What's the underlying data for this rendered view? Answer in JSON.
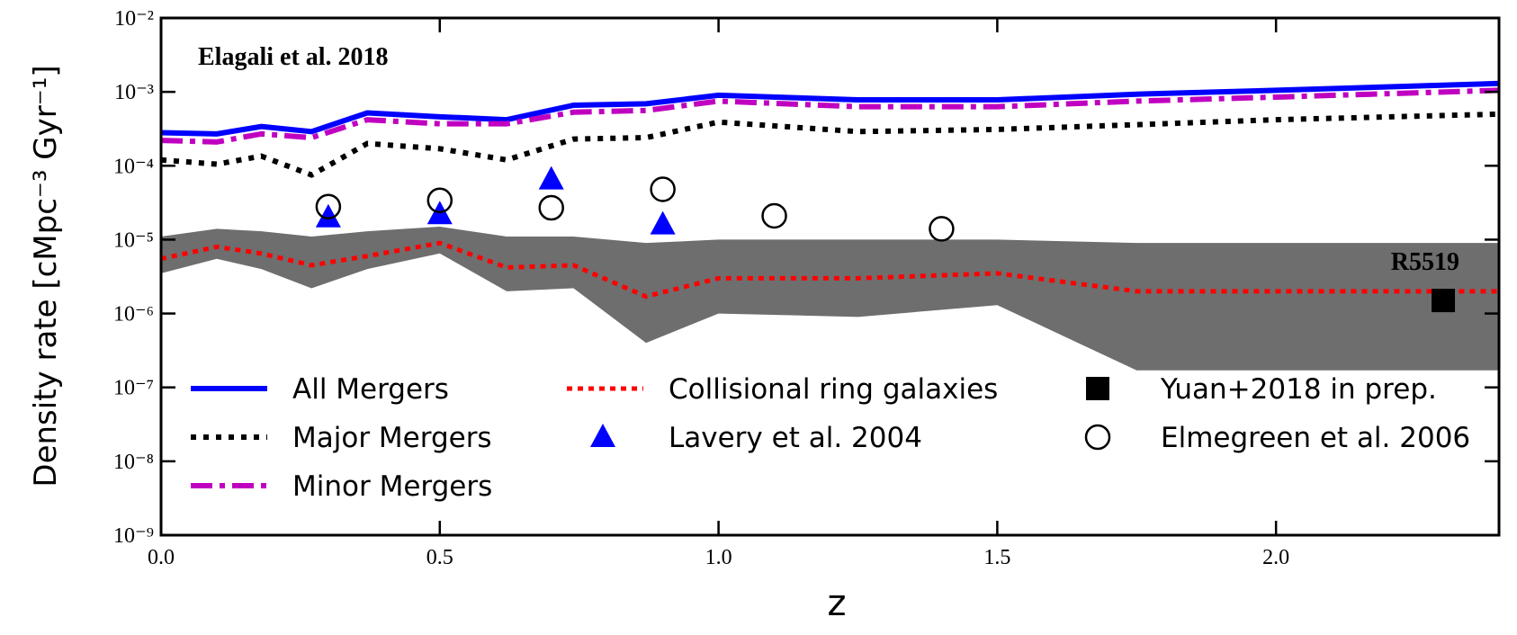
{
  "chart_data": {
    "type": "line",
    "annotation": "Elagali et al. 2018",
    "xlabel": "z",
    "ylabel": "Density rate [cMpc⁻³ Gyr⁻¹]",
    "log_y": true,
    "xlim": [
      0,
      2.4
    ],
    "ylim": [
      1e-09,
      0.01
    ],
    "xticks": [
      {
        "value": 0,
        "label": "0.0"
      },
      0.5,
      {
        "value": 1,
        "label": "1.0"
      },
      1.5,
      {
        "value": 2,
        "label": "2.0"
      }
    ],
    "yticks": [
      {
        "value": 1e-09,
        "label": "10⁻⁹"
      },
      {
        "value": 1e-08,
        "label": "10⁻⁸"
      },
      {
        "value": 1e-07,
        "label": "10⁻⁷"
      },
      {
        "value": 1e-06,
        "label": "10⁻⁶"
      },
      {
        "value": 1e-05,
        "label": "10⁻⁵"
      },
      {
        "value": 0.0001,
        "label": "10⁻⁴"
      },
      {
        "value": 0.001,
        "label": "10⁻³"
      },
      {
        "value": 0.01,
        "label": "10⁻²"
      }
    ],
    "band": {
      "color": "#6e6e6e",
      "x": [
        0,
        0.1,
        0.18,
        0.27,
        0.37,
        0.5,
        0.62,
        0.74,
        0.87,
        1.0,
        1.25,
        1.5,
        1.75,
        2.0,
        2.4
      ],
      "upper": [
        1.1e-05,
        1.4e-05,
        1.3e-05,
        1.1e-05,
        1.3e-05,
        1.5e-05,
        1.1e-05,
        1.1e-05,
        9e-06,
        1e-05,
        1e-05,
        1e-05,
        9e-06,
        9e-06,
        9e-06
      ],
      "lower": [
        3.5e-06,
        5.5e-06,
        4e-06,
        2.2e-06,
        4e-06,
        6.5e-06,
        2e-06,
        2.2e-06,
        4e-07,
        1e-06,
        9e-07,
        1.3e-06,
        1.7e-07,
        1.7e-07,
        1.7e-07
      ]
    },
    "series": [
      {
        "name": "All Mergers",
        "color": "#0000ff",
        "style": "solid",
        "x": [
          0,
          0.1,
          0.18,
          0.27,
          0.37,
          0.5,
          0.62,
          0.74,
          0.87,
          1.0,
          1.25,
          1.5,
          1.75,
          2.0,
          2.4
        ],
        "values": [
          0.00028,
          0.00027,
          0.00034,
          0.00029,
          0.00052,
          0.00046,
          0.00042,
          0.00066,
          0.00069,
          0.0009,
          0.00078,
          0.00078,
          0.00093,
          0.00105,
          0.0013
        ]
      },
      {
        "name": "Major Mergers",
        "color": "#000000",
        "style": "dotted",
        "x": [
          0,
          0.1,
          0.18,
          0.27,
          0.37,
          0.5,
          0.62,
          0.74,
          0.87,
          1.0,
          1.25,
          1.5,
          1.75,
          2.0,
          2.4
        ],
        "values": [
          0.00012,
          0.000105,
          0.000135,
          7.5e-05,
          0.0002,
          0.00017,
          0.00012,
          0.00023,
          0.00024,
          0.00039,
          0.00029,
          0.00031,
          0.00036,
          0.00042,
          0.0005
        ]
      },
      {
        "name": "Minor Mergers",
        "color": "#c000c0",
        "style": "dashdot",
        "x": [
          0,
          0.1,
          0.18,
          0.27,
          0.37,
          0.5,
          0.62,
          0.74,
          0.87,
          1.0,
          1.25,
          1.5,
          1.75,
          2.0,
          2.4
        ],
        "values": [
          0.00022,
          0.00021,
          0.00027,
          0.00024,
          0.00042,
          0.00037,
          0.00037,
          0.00053,
          0.00056,
          0.00075,
          0.00063,
          0.00063,
          0.00075,
          0.00085,
          0.00105
        ]
      },
      {
        "name": "Collisional ring galaxies",
        "color": "#ff0000",
        "style": "reddot",
        "x": [
          0,
          0.1,
          0.18,
          0.27,
          0.37,
          0.5,
          0.62,
          0.74,
          0.87,
          1.0,
          1.25,
          1.5,
          1.75,
          2.0,
          2.4
        ],
        "values": [
          5.5e-06,
          8e-06,
          6.5e-06,
          4.5e-06,
          6e-06,
          9e-06,
          4.2e-06,
          4.5e-06,
          1.7e-06,
          3e-06,
          3e-06,
          3.5e-06,
          2e-06,
          2e-06,
          2e-06
        ]
      },
      {
        "name": "Lavery et al. 2004",
        "color": "#0000ff",
        "marker": "triangle",
        "x": [
          0.3,
          0.5,
          0.7,
          0.9
        ],
        "values": [
          2e-05,
          2.2e-05,
          6.5e-05,
          1.6e-05
        ]
      },
      {
        "name": "Yuan+2018 in prep.",
        "color": "#000000",
        "marker": "square",
        "x": [
          2.3
        ],
        "values": [
          1.5e-06
        ],
        "point_label": "R5519"
      },
      {
        "name": "Elmegreen et al. 2006",
        "color": "#000000",
        "marker": "circle",
        "x": [
          0.3,
          0.5,
          0.7,
          0.9,
          1.1,
          1.4
        ],
        "values": [
          2.8e-05,
          3.4e-05,
          2.7e-05,
          4.8e-05,
          2.1e-05,
          1.4e-05
        ]
      }
    ]
  }
}
